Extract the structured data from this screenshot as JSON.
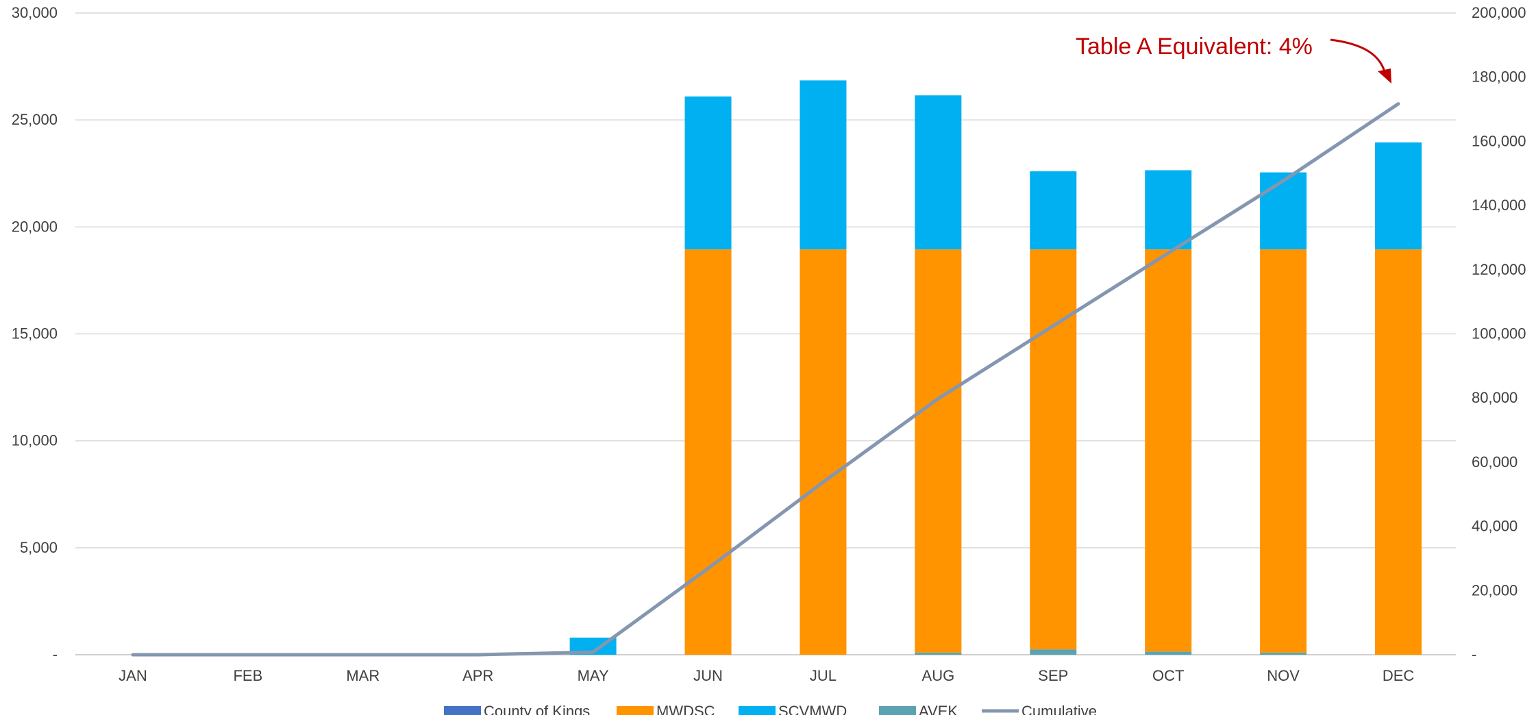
{
  "chart_data": {
    "type": "bar",
    "stacked": true,
    "categories": [
      "JAN",
      "FEB",
      "MAR",
      "APR",
      "MAY",
      "JUN",
      "JUL",
      "AUG",
      "SEP",
      "OCT",
      "NOV",
      "DEC"
    ],
    "series": [
      {
        "name": "County of Kings",
        "color": "#4472c4",
        "values": [
          0,
          0,
          0,
          0,
          0,
          0,
          0,
          0,
          0,
          0,
          0,
          0
        ]
      },
      {
        "name": "AVEK",
        "color": "#5ba3b0",
        "values": [
          0,
          0,
          0,
          0,
          0,
          0,
          0,
          100,
          250,
          150,
          100,
          0
        ]
      },
      {
        "name": "MWDSC",
        "color": "#ff9300",
        "values": [
          0,
          0,
          0,
          0,
          0,
          18950,
          18950,
          18850,
          18700,
          18800,
          18850,
          18950
        ]
      },
      {
        "name": "SCVMWD",
        "color": "#00b0f0",
        "values": [
          0,
          0,
          0,
          0,
          800,
          7150,
          7900,
          7200,
          3650,
          3700,
          3600,
          5000
        ]
      }
    ],
    "line": {
      "name": "Cumulative",
      "color": "#8496b0",
      "axis": "right",
      "values": [
        0,
        0,
        0,
        0,
        800,
        26900,
        53800,
        79800,
        102500,
        125200,
        147700,
        171700
      ]
    },
    "legend_order": [
      "County of Kings",
      "MWDSC",
      "SCVMWD",
      "AVEK",
      "Cumulative"
    ],
    "ylim_left": [
      0,
      30000
    ],
    "yticks_left": [
      "-",
      "5,000",
      "10,000",
      "15,000",
      "20,000",
      "25,000",
      "30,000"
    ],
    "ylim_right": [
      0,
      200000
    ],
    "yticks_right": [
      "-",
      "20,000",
      "40,000",
      "60,000",
      "80,000",
      "100,000",
      "120,000",
      "140,000",
      "160,000",
      "180,000",
      "200,000"
    ],
    "annotation": {
      "text": "Table A Equivalent: 4%",
      "color": "#c00000",
      "points_to": "DEC"
    },
    "grid": true,
    "legend_position": "bottom"
  }
}
